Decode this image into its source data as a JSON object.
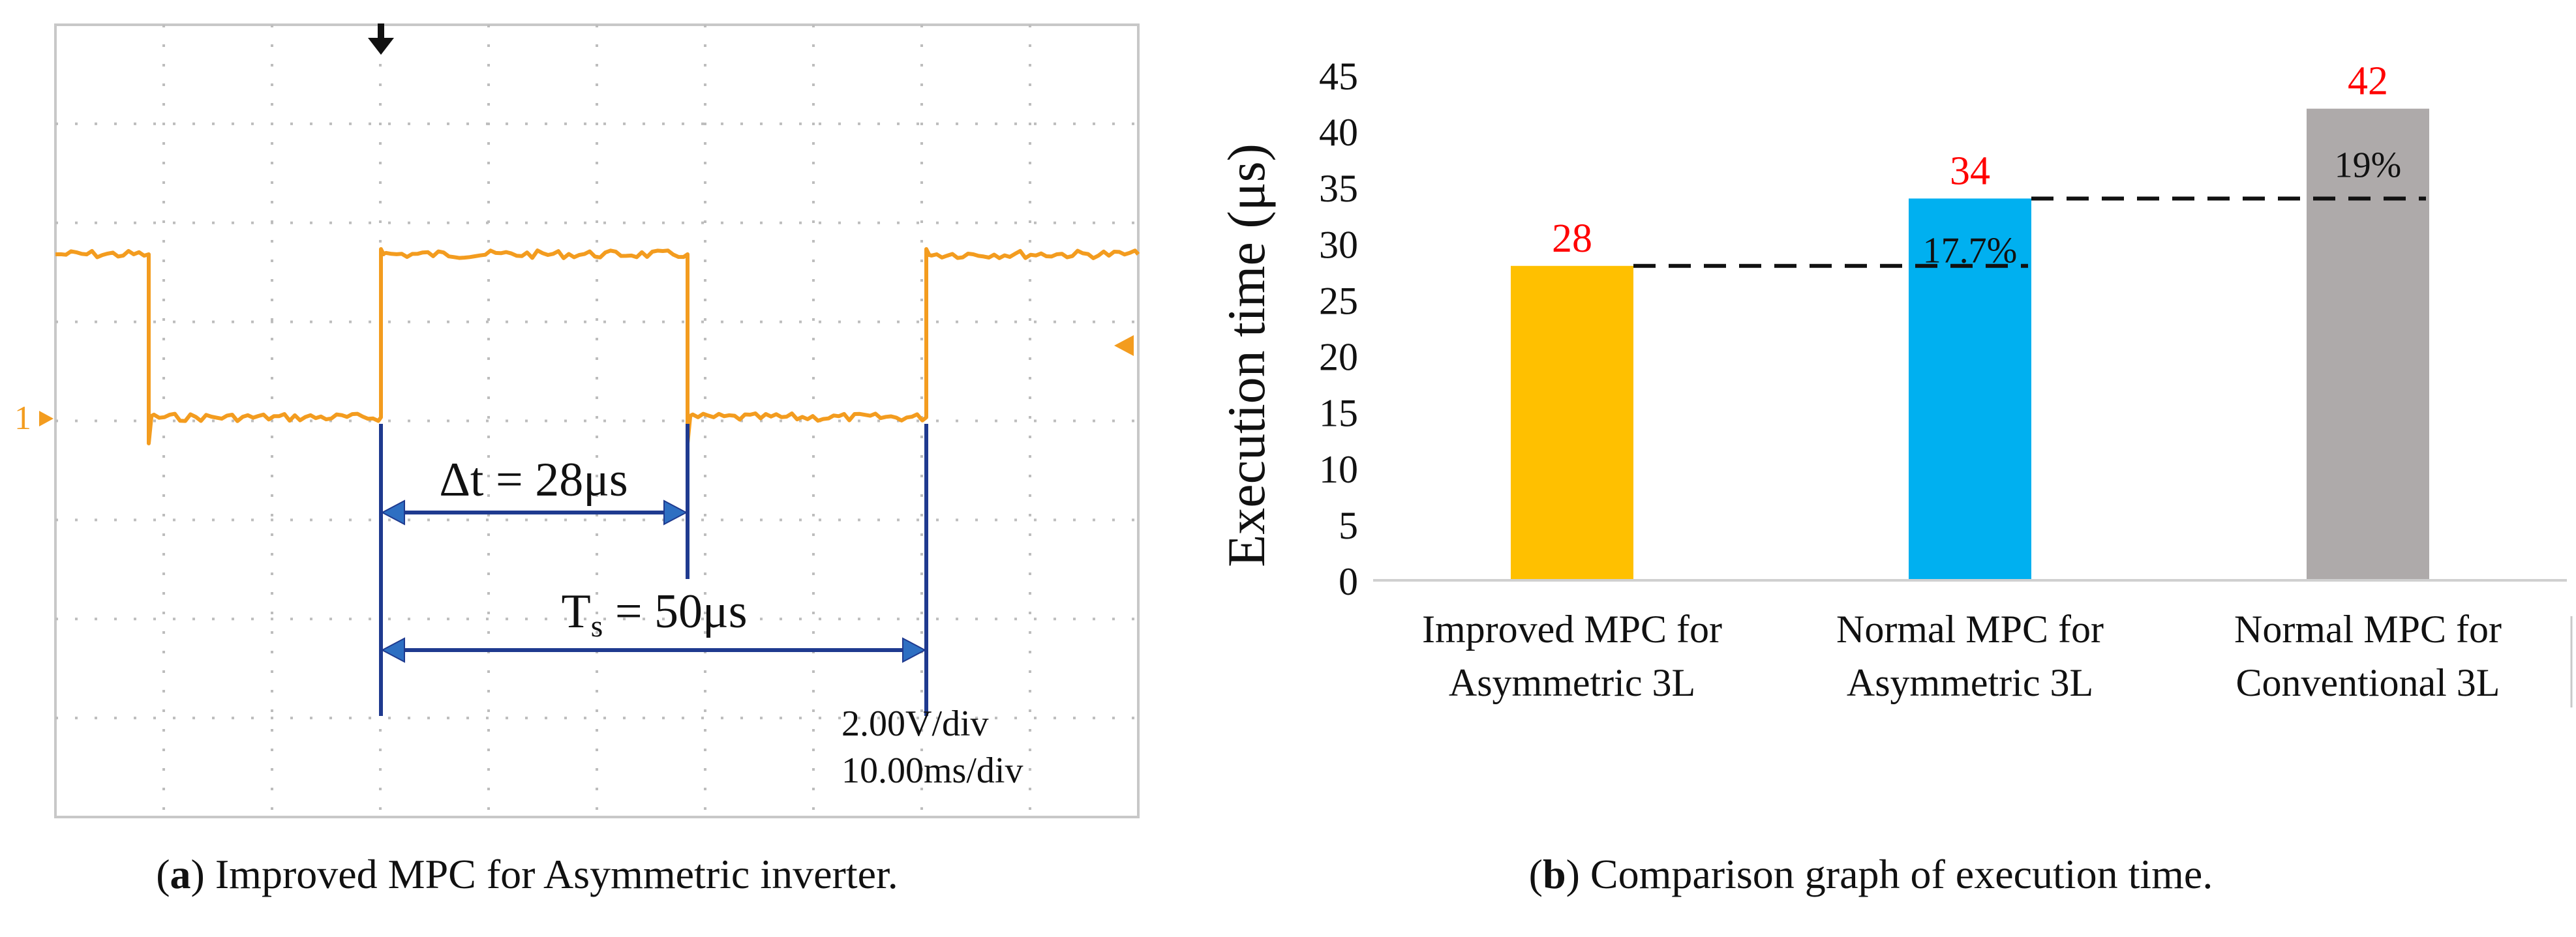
{
  "chart_data": [
    {
      "type": "waveform",
      "title": "Improved MPC for Asymmetric inverter.",
      "caption_letter": "a",
      "trace_color": "#F39C1F",
      "marker_color": "#1F3A8F",
      "arrow_color": "#2E6FC2",
      "channel_label": "1",
      "annotations": {
        "delta_t": "Δt = 28μs",
        "ts_main": "T",
        "ts_sub": "s",
        "ts_rest": " = 50μs",
        "volts_div": "2.00V/div",
        "time_div": "10.00ms/div"
      },
      "grid": {
        "cols": 10,
        "rows": 8
      }
    },
    {
      "type": "bar",
      "title": "Comparison graph of execution time.",
      "caption_letter": "b",
      "ylabel": "Execution time (μs)",
      "ylim": [
        0,
        45
      ],
      "yticks": [
        0,
        5,
        10,
        15,
        20,
        25,
        30,
        35,
        40,
        45
      ],
      "categories": [
        [
          "Improved MPC for",
          "Asymmetric 3L"
        ],
        [
          "Normal MPC for",
          "Asymmetric 3L"
        ],
        [
          "Normal MPC for",
          "Conventional 3L"
        ]
      ],
      "values": [
        28,
        34,
        42
      ],
      "bar_colors": [
        "#FFC000",
        "#00B0F0",
        "#AEAAAA"
      ],
      "value_label_color": "#FF0000",
      "percent_labels": [
        "",
        "17.7%",
        "19%"
      ]
    }
  ]
}
